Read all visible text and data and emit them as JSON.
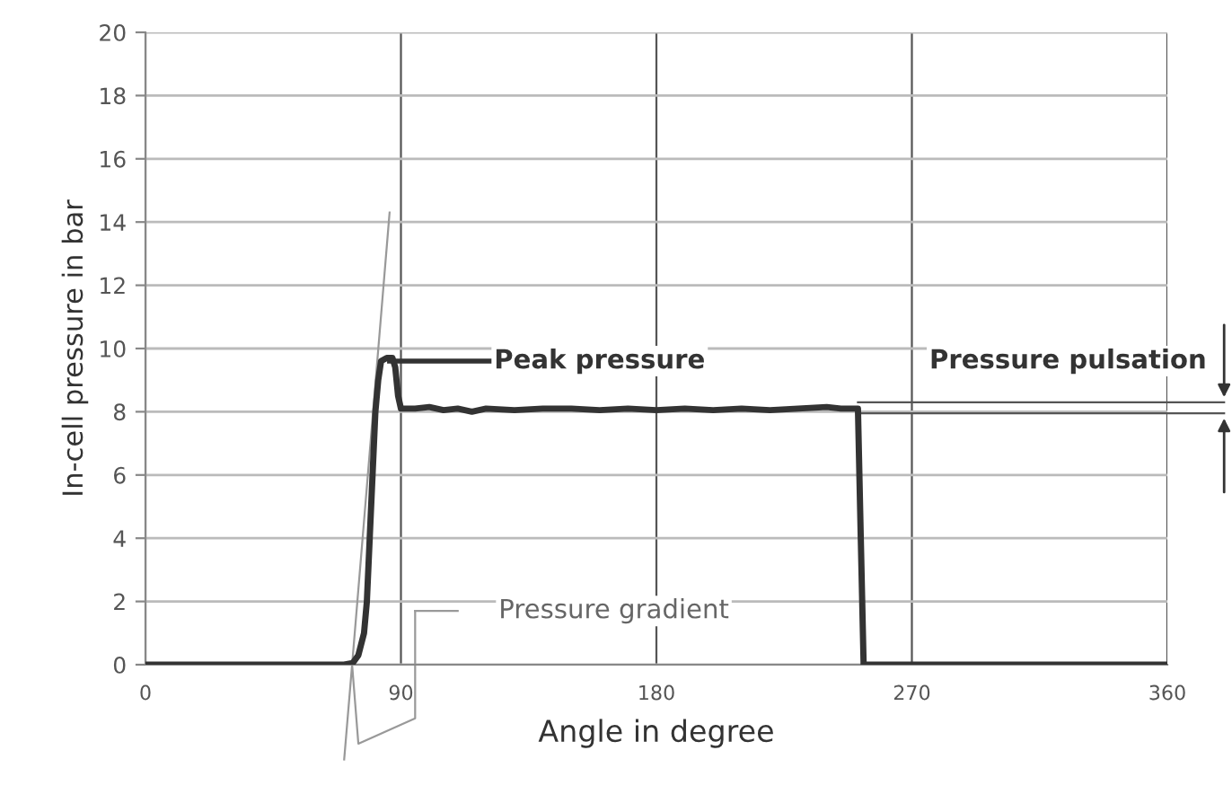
{
  "chart_data": {
    "type": "line",
    "xlabel": "Angle in degree",
    "ylabel": "In-cell pressure in bar",
    "x": [
      0,
      70,
      73,
      75,
      77,
      78,
      79,
      80,
      81,
      82,
      83,
      85,
      87,
      88,
      89,
      90,
      95,
      100,
      105,
      110,
      115,
      120,
      130,
      140,
      150,
      160,
      170,
      180,
      190,
      200,
      210,
      220,
      230,
      240,
      245,
      250,
      251,
      252,
      253,
      300,
      360
    ],
    "series": [
      {
        "type": "line",
        "color": "#999999",
        "x": [
          72.8,
          86
        ],
        "values": [
          0,
          14.3
        ]
      },
      {
        "color": "#333333",
        "values": [
          0,
          0,
          0.05,
          0.3,
          1,
          2,
          4,
          6,
          8,
          9,
          9.6,
          9.7,
          9.7,
          9.4,
          8.5,
          8.1,
          8.1,
          8.15,
          8.05,
          8.1,
          8.0,
          8.1,
          8.05,
          8.1,
          8.1,
          8.05,
          8.1,
          8.05,
          8.1,
          8.05,
          8.1,
          8.05,
          8.1,
          8.15,
          8.1,
          8.1,
          8.1,
          4,
          0,
          0,
          0
        ]
      }
    ],
    "xlim": [
      0,
      360
    ],
    "xticks": [
      0,
      90,
      180,
      270,
      360
    ],
    "ylim": [
      0,
      20
    ],
    "yticks": [
      0,
      2,
      4,
      6,
      8,
      10,
      12,
      14,
      16,
      18,
      20
    ],
    "grid": true,
    "line_style": "solid",
    "marker": "none",
    "annotations": [
      {
        "text": "Peak pressure",
        "x": 86,
        "y": 9.6
      },
      "Pressure pulsation",
      "Pressure gradient"
    ]
  }
}
